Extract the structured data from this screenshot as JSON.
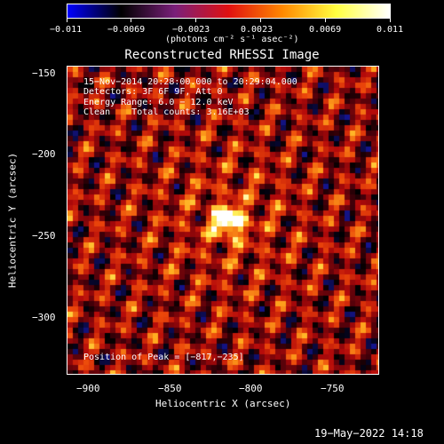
{
  "colorbar": {
    "colors": [
      "#0000ff",
      "#000000",
      "#7a1f7a",
      "#e01010",
      "#ff8800",
      "#ffff40",
      "#ffffff"
    ],
    "ticks": [
      "−0.011",
      "−0.0069",
      "−0.0023",
      "0.0023",
      "0.0069",
      "0.011"
    ],
    "unit": "(photons cm⁻² s⁻¹ asec⁻²)"
  },
  "title": "Reconstructed RHESSI Image",
  "annotations": {
    "time": "15−Nov−2014 20:28:00.000 to 20:29:04.000",
    "detectors": "Detectors: 3F 6F 9F, Att 0",
    "energy": "Energy Range: 6.0 − 12.0 keV",
    "clean": "Clean    Total counts: 3.16E+03",
    "peak": "Position of Peak = [−817,−235]"
  },
  "axes": {
    "xlabel": "Heliocentric X (arcsec)",
    "ylabel": "Heliocentric Y (arcsec)",
    "xticks": [
      "−900",
      "−850",
      "−800",
      "−750"
    ],
    "yticks": [
      "−150",
      "−200",
      "−250",
      "−300"
    ],
    "xrange": [
      -915,
      -723
    ],
    "yrange": [
      -330,
      -142
    ]
  },
  "image": {
    "peak_x": -817,
    "peak_y": -235
  },
  "date_stamp": "19−May−2022 14:18"
}
